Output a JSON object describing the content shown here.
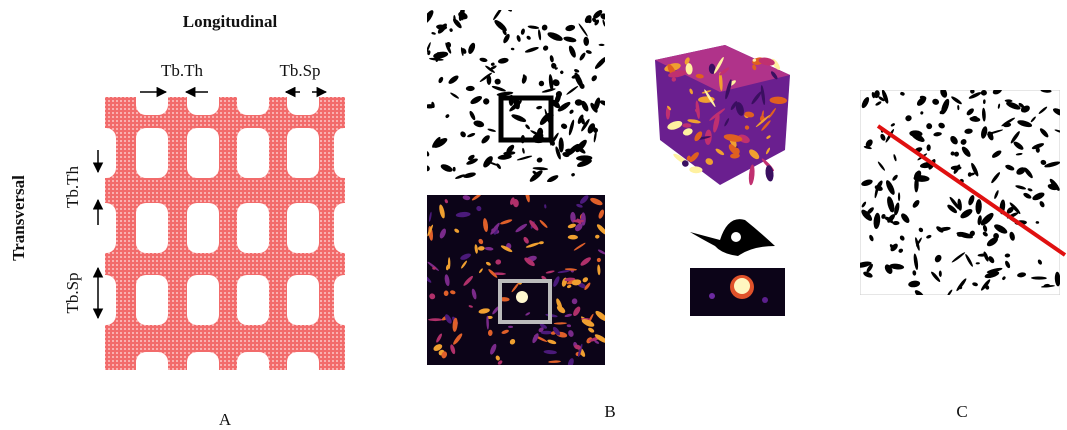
{
  "panel_a": {
    "title": "Longitudinal",
    "side_label": "Transversal",
    "top_labels": [
      "Tb.Th",
      "Tb.Sp"
    ],
    "left_labels": [
      "Tb.Th",
      "Tb.Sp"
    ]
  },
  "panel_labels": [
    "A",
    "B",
    "C"
  ]
}
